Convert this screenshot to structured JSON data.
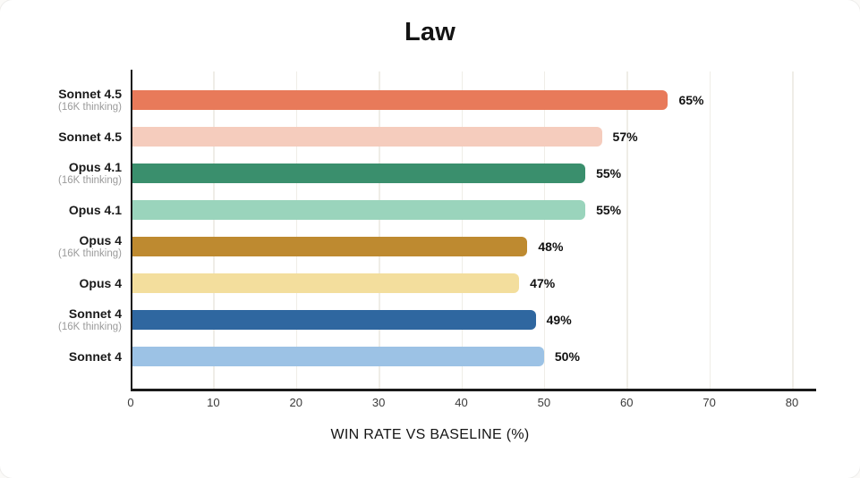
{
  "title": "Law",
  "x_axis_title": "WIN RATE VS BASELINE (%)",
  "chart_data": {
    "type": "bar",
    "orientation": "horizontal",
    "title": "Law",
    "xlabel": "WIN RATE VS BASELINE (%)",
    "xlim": [
      0,
      83
    ],
    "xticks": [
      0,
      10,
      20,
      30,
      40,
      50,
      60,
      70,
      80
    ],
    "grid": true,
    "grid_color": "#efede7",
    "axis_color": "#1a1a1a",
    "categories": [
      "Sonnet 4.5 (16K thinking)",
      "Sonnet 4.5",
      "Opus 4.1 (16K thinking)",
      "Opus 4.1",
      "Opus 4 (16K thinking)",
      "Opus 4",
      "Sonnet 4 (16K thinking)",
      "Sonnet 4"
    ],
    "values": [
      65,
      57,
      55,
      55,
      48,
      47,
      49,
      50
    ],
    "bars": [
      {
        "label": "Sonnet 4.5",
        "sublabel": "(16K thinking)",
        "value": 65,
        "value_label": "65%",
        "color": "#e87a5a"
      },
      {
        "label": "Sonnet 4.5",
        "sublabel": "",
        "value": 57,
        "value_label": "57%",
        "color": "#f5ccbd"
      },
      {
        "label": "Opus 4.1",
        "sublabel": "(16K thinking)",
        "value": 55,
        "value_label": "55%",
        "color": "#3a8f6d"
      },
      {
        "label": "Opus 4.1",
        "sublabel": "",
        "value": 55,
        "value_label": "55%",
        "color": "#9ad4bc"
      },
      {
        "label": "Opus 4",
        "sublabel": "(16K thinking)",
        "value": 48,
        "value_label": "48%",
        "color": "#be8a30"
      },
      {
        "label": "Opus 4",
        "sublabel": "",
        "value": 47,
        "value_label": "47%",
        "color": "#f3de9d"
      },
      {
        "label": "Sonnet 4",
        "sublabel": "(16K thinking)",
        "value": 49,
        "value_label": "49%",
        "color": "#2f67a0"
      },
      {
        "label": "Sonnet 4",
        "sublabel": "",
        "value": 50,
        "value_label": "50%",
        "color": "#9cc2e5"
      }
    ]
  }
}
